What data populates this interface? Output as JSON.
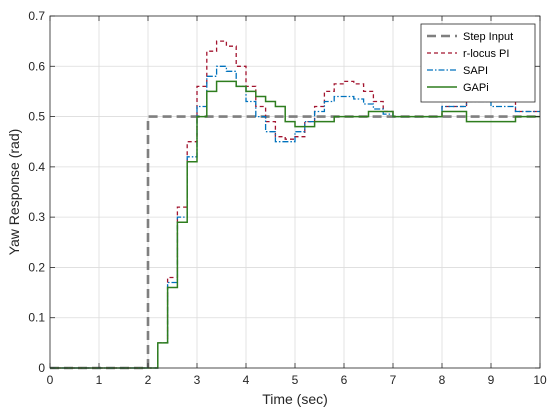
{
  "chart_data": {
    "type": "line",
    "title": "",
    "xlabel": "Time (sec)",
    "ylabel": "Yaw Response (rad)",
    "xlim": [
      0,
      10
    ],
    "ylim": [
      0,
      0.7
    ],
    "xticks": [
      0,
      1,
      2,
      3,
      4,
      5,
      6,
      7,
      8,
      9,
      10
    ],
    "yticks": [
      0,
      0.1,
      0.2,
      0.3,
      0.4,
      0.5,
      0.6,
      0.7
    ],
    "grid": true,
    "legend_position": "top-right",
    "series": [
      {
        "name": "Step Input",
        "color": "#7f7f7f",
        "style": "dashed-thick",
        "points": [
          [
            0,
            0
          ],
          [
            2,
            0
          ],
          [
            2,
            0.5
          ],
          [
            10,
            0.5
          ]
        ]
      },
      {
        "name": "r-locus PI",
        "color": "#a2142f",
        "style": "dashed",
        "points": [
          [
            0,
            0
          ],
          [
            2.05,
            0
          ],
          [
            2.2,
            0.05
          ],
          [
            2.4,
            0.18
          ],
          [
            2.6,
            0.32
          ],
          [
            2.8,
            0.45
          ],
          [
            3.0,
            0.56
          ],
          [
            3.2,
            0.63
          ],
          [
            3.4,
            0.65
          ],
          [
            3.6,
            0.64
          ],
          [
            3.8,
            0.6
          ],
          [
            4.0,
            0.56
          ],
          [
            4.2,
            0.52
          ],
          [
            4.4,
            0.49
          ],
          [
            4.6,
            0.46
          ],
          [
            4.8,
            0.455
          ],
          [
            5.0,
            0.46
          ],
          [
            5.2,
            0.49
          ],
          [
            5.4,
            0.52
          ],
          [
            5.6,
            0.55
          ],
          [
            5.8,
            0.565
          ],
          [
            6.0,
            0.57
          ],
          [
            6.2,
            0.565
          ],
          [
            6.4,
            0.55
          ],
          [
            6.6,
            0.53
          ],
          [
            6.8,
            0.51
          ],
          [
            7.0,
            0.5
          ],
          [
            7.5,
            0.5
          ],
          [
            8.0,
            0.52
          ],
          [
            8.5,
            0.54
          ],
          [
            9.0,
            0.53
          ],
          [
            9.5,
            0.51
          ],
          [
            10.0,
            0.51
          ]
        ]
      },
      {
        "name": "SAPI",
        "color": "#0072bd",
        "style": "dashdot",
        "points": [
          [
            0,
            0
          ],
          [
            2.05,
            0
          ],
          [
            2.2,
            0.05
          ],
          [
            2.4,
            0.17
          ],
          [
            2.6,
            0.3
          ],
          [
            2.8,
            0.42
          ],
          [
            3.0,
            0.52
          ],
          [
            3.2,
            0.58
          ],
          [
            3.4,
            0.6
          ],
          [
            3.6,
            0.59
          ],
          [
            3.8,
            0.56
          ],
          [
            4.0,
            0.53
          ],
          [
            4.2,
            0.5
          ],
          [
            4.4,
            0.47
          ],
          [
            4.6,
            0.45
          ],
          [
            4.8,
            0.45
          ],
          [
            5.0,
            0.47
          ],
          [
            5.2,
            0.49
          ],
          [
            5.4,
            0.51
          ],
          [
            5.6,
            0.53
          ],
          [
            5.8,
            0.54
          ],
          [
            6.0,
            0.54
          ],
          [
            6.2,
            0.535
          ],
          [
            6.4,
            0.525
          ],
          [
            6.6,
            0.515
          ],
          [
            6.8,
            0.505
          ],
          [
            7.0,
            0.5
          ],
          [
            7.5,
            0.5
          ],
          [
            8.0,
            0.52
          ],
          [
            8.5,
            0.53
          ],
          [
            9.0,
            0.52
          ],
          [
            9.5,
            0.51
          ],
          [
            10.0,
            0.51
          ]
        ]
      },
      {
        "name": "GAPi",
        "color": "#2e7d1e",
        "style": "solid",
        "points": [
          [
            0,
            0
          ],
          [
            2.05,
            0
          ],
          [
            2.2,
            0.05
          ],
          [
            2.4,
            0.16
          ],
          [
            2.6,
            0.29
          ],
          [
            2.8,
            0.41
          ],
          [
            3.0,
            0.5
          ],
          [
            3.2,
            0.55
          ],
          [
            3.4,
            0.57
          ],
          [
            3.6,
            0.57
          ],
          [
            3.8,
            0.56
          ],
          [
            4.0,
            0.55
          ],
          [
            4.2,
            0.54
          ],
          [
            4.4,
            0.53
          ],
          [
            4.6,
            0.52
          ],
          [
            4.8,
            0.49
          ],
          [
            5.0,
            0.48
          ],
          [
            5.2,
            0.48
          ],
          [
            5.4,
            0.49
          ],
          [
            5.6,
            0.49
          ],
          [
            5.8,
            0.5
          ],
          [
            6.0,
            0.5
          ],
          [
            6.5,
            0.51
          ],
          [
            7.0,
            0.5
          ],
          [
            7.5,
            0.5
          ],
          [
            8.0,
            0.51
          ],
          [
            8.5,
            0.49
          ],
          [
            9.0,
            0.49
          ],
          [
            9.5,
            0.5
          ],
          [
            10.0,
            0.5
          ]
        ]
      }
    ]
  }
}
